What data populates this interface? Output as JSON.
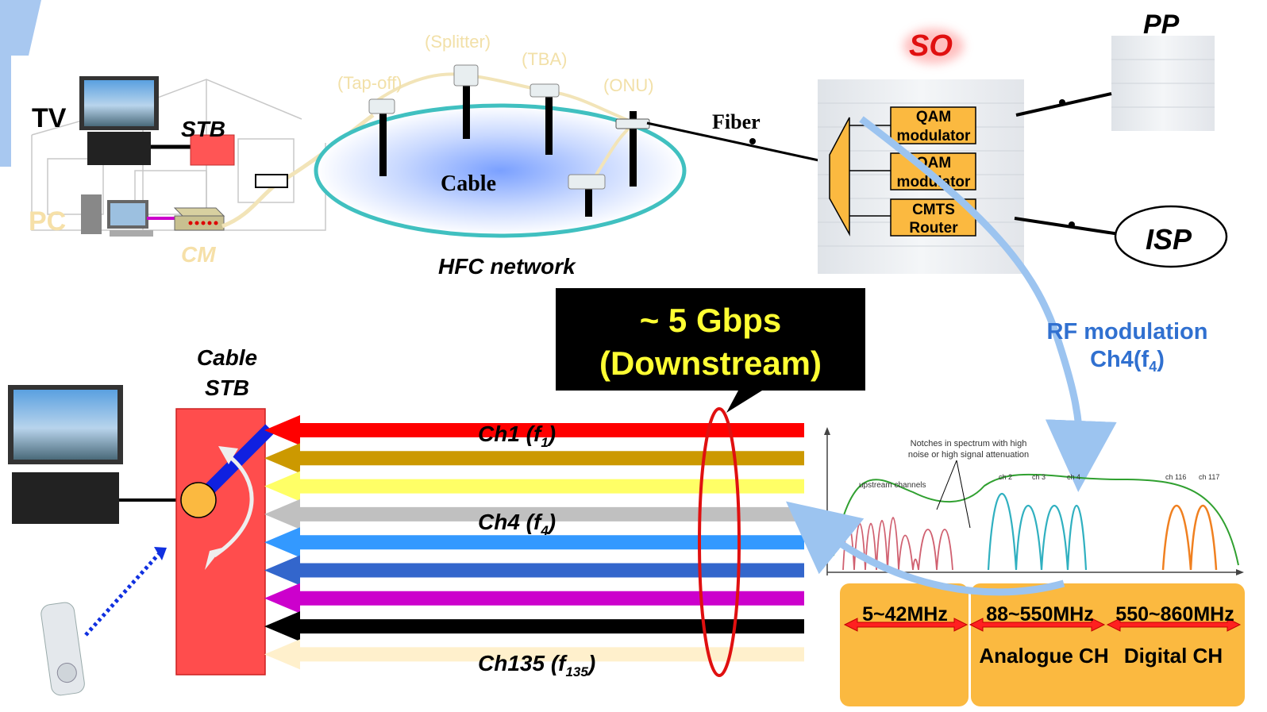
{
  "labels": {
    "tv": "TV",
    "stb": "STB",
    "pc": "PC",
    "cm": "CM",
    "tap_off": "(Tap-off)",
    "splitter": "(Splitter)",
    "tba": "(TBA)",
    "onu": "(ONU)",
    "cable": "Cable",
    "hfc_network": "HFC network",
    "fiber": "Fiber",
    "so": "SO",
    "pp": "PP",
    "isp": "ISP",
    "qam1_line1": "QAM",
    "qam1_line2": "modulator",
    "qam2_line1": "QAM",
    "qam2_line2": "modulator",
    "cmts_line1": "CMTS",
    "cmts_line2": "Router",
    "rf_line1": "RF modulation",
    "rf_line2_main": "Ch4(f",
    "rf_line2_sub": "4",
    "rf_line2_end": ")",
    "callout_line1": "~ 5 Gbps",
    "callout_line2": "(Downstream)",
    "cable_stb_line1": "Cable",
    "cable_stb_line2": "STB"
  },
  "channels": [
    {
      "main": "Ch1 (f",
      "sub": "1",
      "end": ")"
    },
    {
      "main": "Ch4 (f",
      "sub": "4",
      "end": ")"
    },
    {
      "main": "Ch135 (f",
      "sub": "135",
      "end": ")"
    }
  ],
  "arrow_colors": [
    "#ff0000",
    "#cc9900",
    "#ffff66",
    "#c0c0c0",
    "#3399ff",
    "#3366cc",
    "#cc00cc",
    "#000000",
    "#fff0cc"
  ],
  "spectrum": {
    "notches_line1": "Notches in spectrum with high",
    "notches_line2": "noise or high signal attenuation",
    "upstream": "upstream channels",
    "ch_labels": [
      "ch 2",
      "ch 3",
      "ch 4",
      "ch 116",
      "ch 117"
    ]
  },
  "bands": {
    "band1": "5~42MHz",
    "band2": "88~550MHz",
    "band3": "550~860MHz",
    "analogue": "Analogue CH",
    "digital": "Digital CH"
  },
  "colors": {
    "stb_red": "#ff4d4d",
    "band_orange": "#fbb940",
    "ring_teal": "#40c0c0",
    "rf_blue": "#3070d0",
    "qam_orange": "#fbb940"
  }
}
